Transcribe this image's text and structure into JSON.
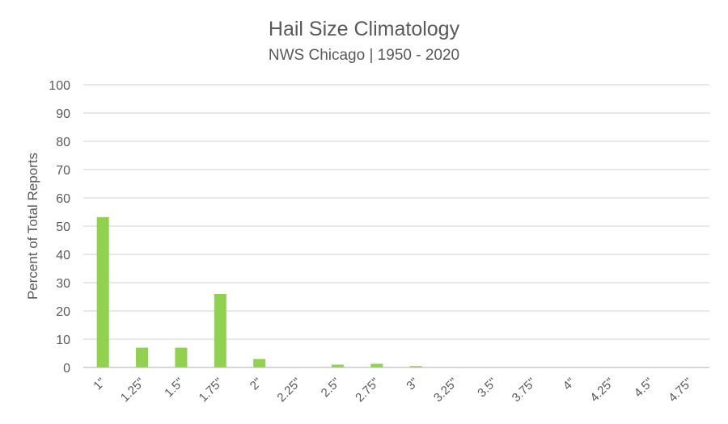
{
  "chart_data": {
    "type": "bar",
    "title": "Hail Size Climatology",
    "subtitle": "NWS Chicago | 1950 - 2020",
    "ylabel": "Percent of Total Reports",
    "xlabel": "",
    "ylim": [
      0,
      100
    ],
    "yticks": [
      "0",
      "10",
      "20",
      "30",
      "40",
      "50",
      "60",
      "70",
      "80",
      "90",
      "100"
    ],
    "grid": true,
    "legend": "none",
    "bar_color": "#92d050",
    "categories": [
      "1\"",
      "1.25\"",
      "1.5\"",
      "1.75\"",
      "2\"",
      "2.25\"",
      "2.5\"",
      "2.75\"",
      "3\"",
      "3.25\"",
      "3.5\"",
      "3.75\"",
      "4\"",
      "4.25\"",
      "4.5\"",
      "4.75\""
    ],
    "values": [
      53.2,
      7.0,
      7.0,
      26.0,
      3.0,
      0.1,
      1.0,
      1.3,
      0.5,
      0.05,
      0.05,
      0.05,
      0.05,
      0.03,
      0.03,
      0.03
    ]
  }
}
